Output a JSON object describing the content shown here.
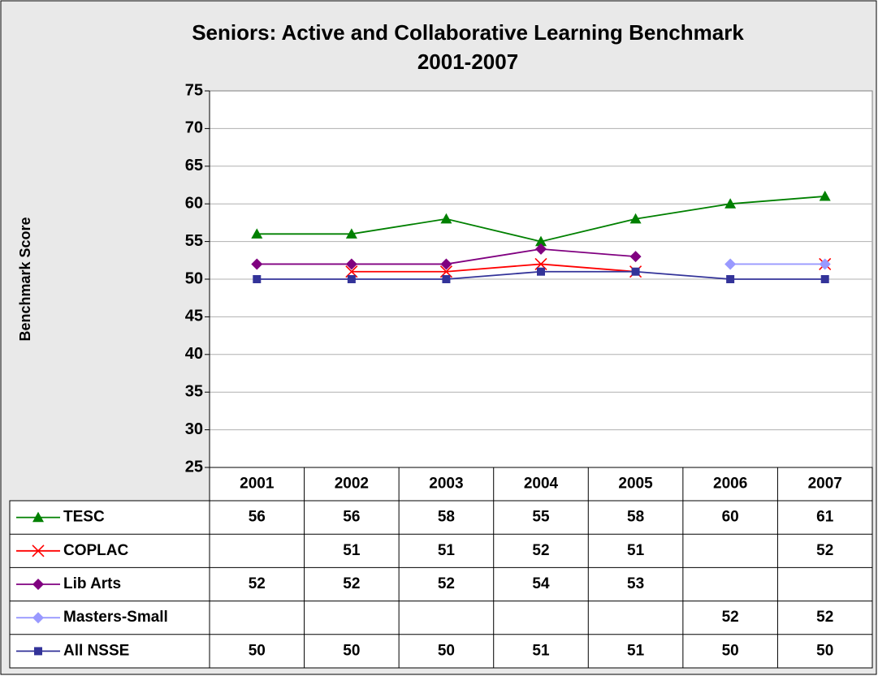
{
  "chart_data": {
    "type": "line",
    "title": [
      "Seniors: Active and Collaborative Learning Benchmark",
      "2001-2007"
    ],
    "y_label": "Benchmark Score",
    "categories": [
      "2001",
      "2002",
      "2003",
      "2004",
      "2005",
      "2006",
      "2007"
    ],
    "ylim": [
      25,
      75
    ],
    "yticks": [
      25,
      30,
      35,
      40,
      45,
      50,
      55,
      60,
      65,
      70,
      75
    ],
    "grid": true,
    "legend": "data-table",
    "series": [
      {
        "name": "TESC",
        "color": "#008000",
        "marker": "triangle",
        "values": [
          56,
          56,
          58,
          55,
          58,
          60,
          61
        ]
      },
      {
        "name": "COPLAC",
        "color": "#ff0000",
        "marker": "x",
        "values": [
          null,
          51,
          51,
          52,
          51,
          null,
          52
        ]
      },
      {
        "name": "Lib Arts",
        "color": "#800080",
        "marker": "diamond",
        "values": [
          52,
          52,
          52,
          54,
          53,
          null,
          null
        ]
      },
      {
        "name": "Masters-Small",
        "color": "#9999ff",
        "marker": "diamond",
        "values": [
          null,
          null,
          null,
          null,
          null,
          52,
          52
        ]
      },
      {
        "name": "All NSSE",
        "color": "#333399",
        "marker": "square",
        "values": [
          50,
          50,
          50,
          51,
          51,
          50,
          50
        ]
      }
    ]
  }
}
